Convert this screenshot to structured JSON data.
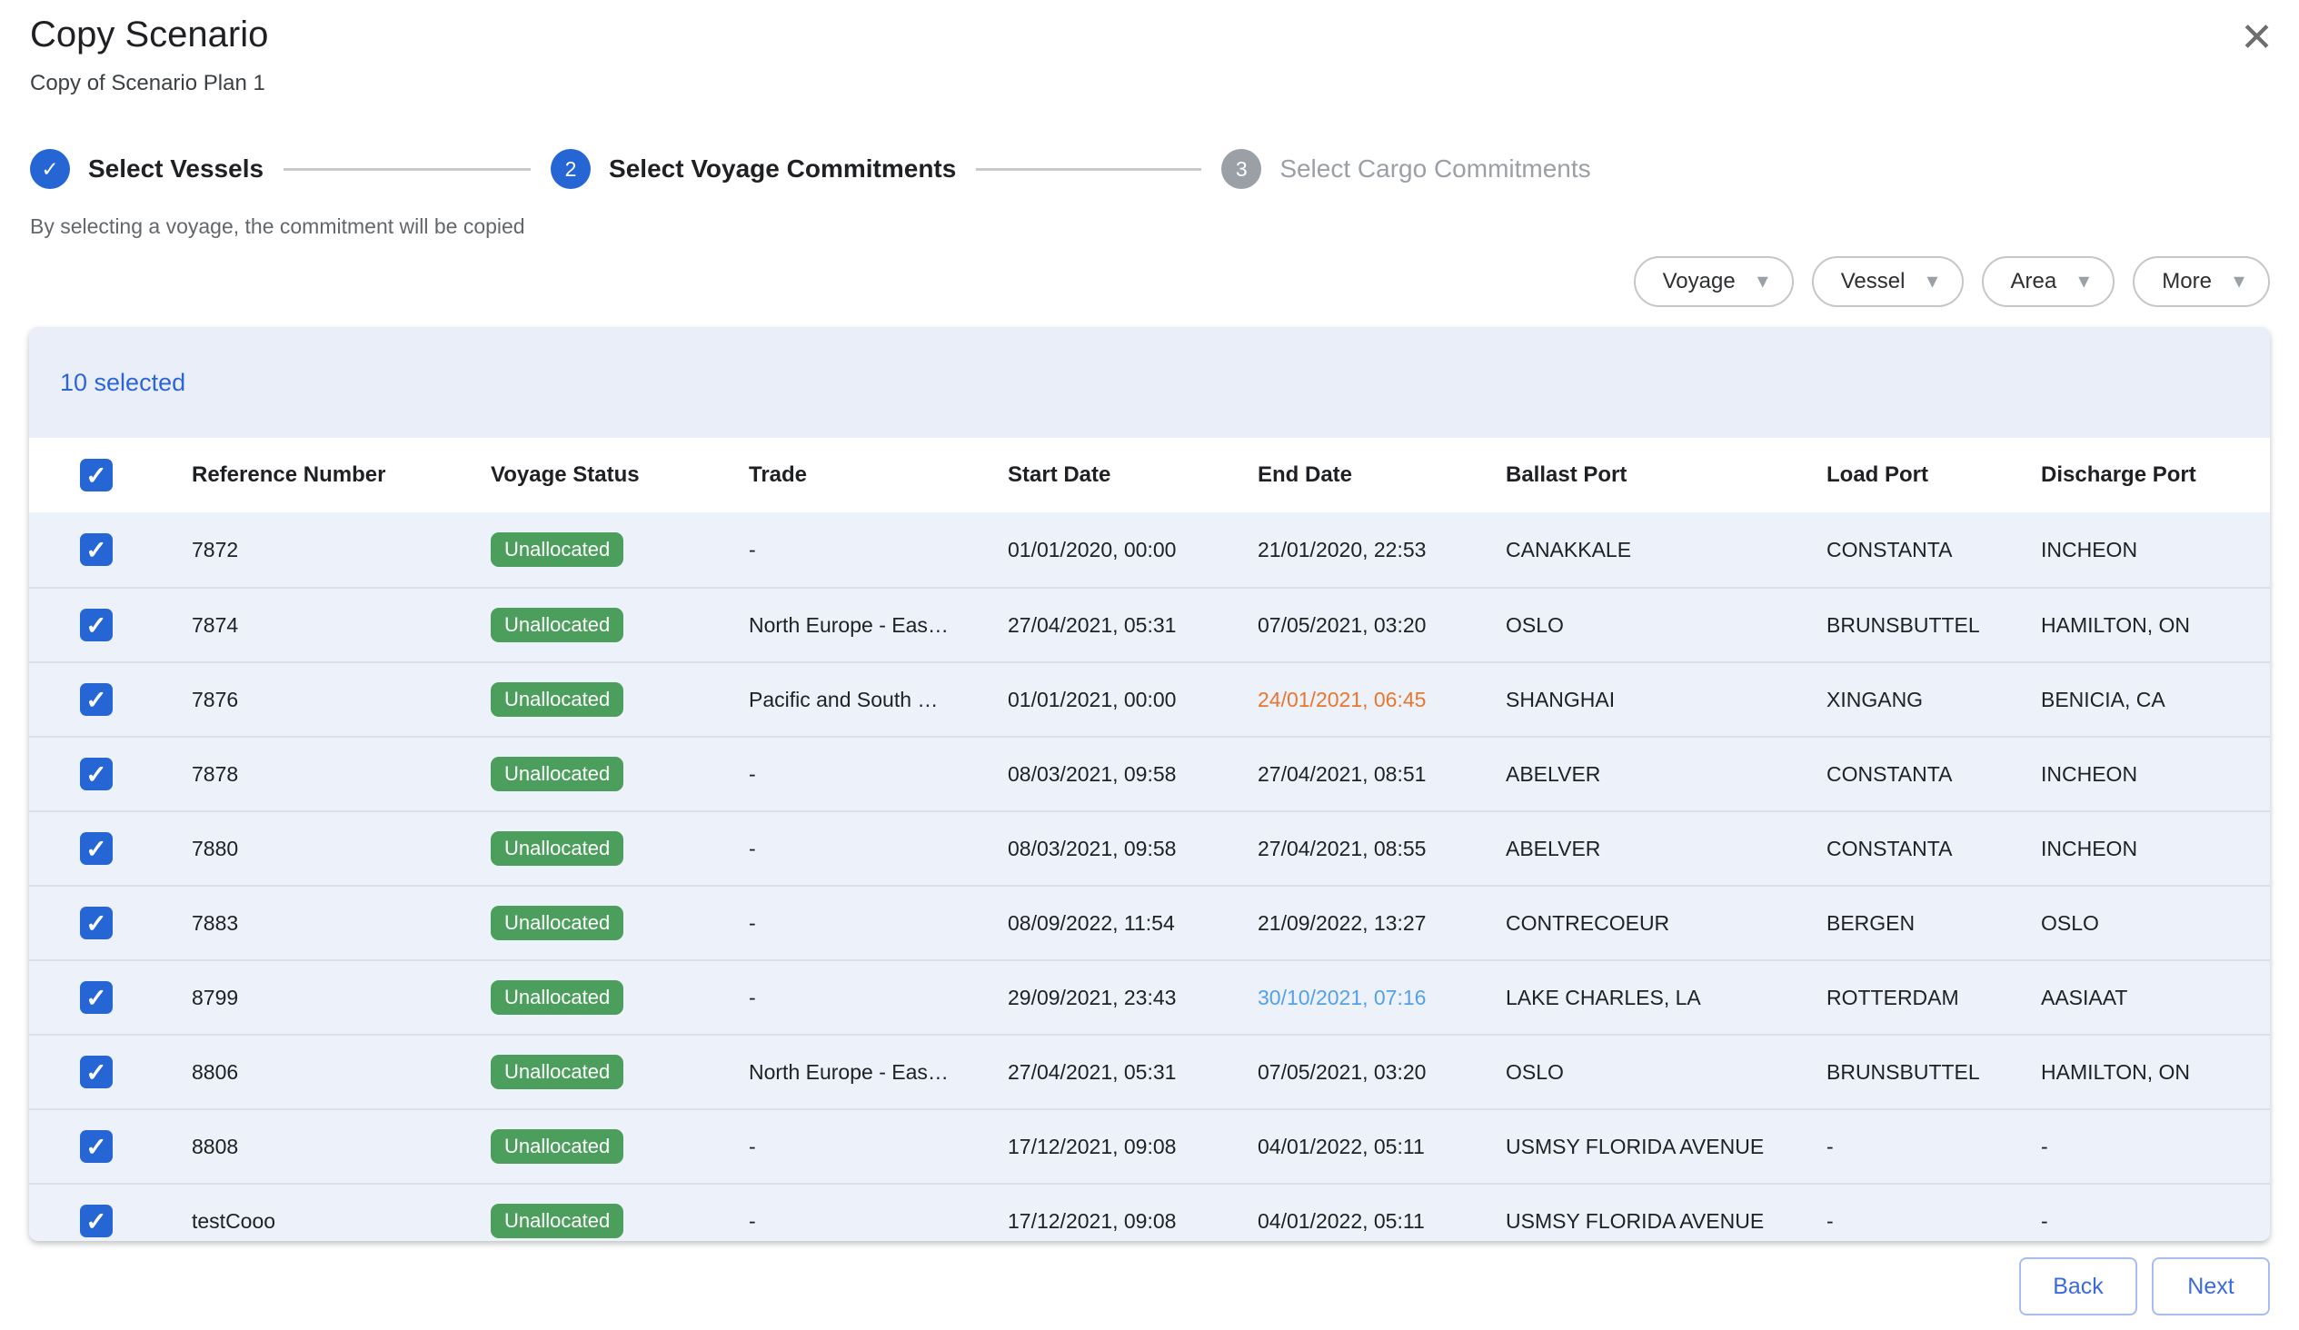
{
  "colors": {
    "accent": "#2565D4",
    "badge_green": "#4C9E5C",
    "date_warning_orange": "#E8772E",
    "date_info_blue": "#54A1E8"
  },
  "icons": {
    "close": "✕",
    "check": "✓",
    "caret_down": "▾"
  },
  "dialog": {
    "title": "Copy Scenario",
    "subtitle": "Copy of Scenario Plan 1"
  },
  "stepper": {
    "helper_text": "By selecting a voyage, the commitment will be copied",
    "steps": [
      {
        "label": "Select Vessels",
        "indicator": "✓",
        "state": "complete"
      },
      {
        "label": "Select Voyage Commitments",
        "indicator": "2",
        "state": "active"
      },
      {
        "label": "Select Cargo Commitments",
        "indicator": "3",
        "state": "upcoming"
      }
    ]
  },
  "filters": {
    "items": [
      {
        "label": "Voyage"
      },
      {
        "label": "Vessel"
      },
      {
        "label": "Area"
      },
      {
        "label": "More"
      }
    ]
  },
  "table": {
    "selection_summary": "10 selected",
    "columns": [
      "Reference Number",
      "Voyage Status",
      "Trade",
      "Start Date",
      "End Date",
      "Ballast Port",
      "Load Port",
      "Discharge Port"
    ],
    "rows": [
      {
        "checked": true,
        "reference": "7872",
        "status": "Unallocated",
        "trade": "-",
        "start": "01/01/2020, 00:00",
        "end": "21/01/2020, 22:53",
        "end_highlight": "",
        "ballast": "CANAKKALE",
        "load": "CONSTANTA",
        "discharge": "INCHEON"
      },
      {
        "checked": true,
        "reference": "7874",
        "status": "Unallocated",
        "trade": "North Europe - Eas…",
        "start": "27/04/2021, 05:31",
        "end": "07/05/2021, 03:20",
        "end_highlight": "",
        "ballast": "OSLO",
        "load": "BRUNSBUTTEL",
        "discharge": "HAMILTON, ON"
      },
      {
        "checked": true,
        "reference": "7876",
        "status": "Unallocated",
        "trade": "Pacific and South …",
        "start": "01/01/2021, 00:00",
        "end": "24/01/2021, 06:45",
        "end_highlight": "warning",
        "ballast": "SHANGHAI",
        "load": "XINGANG",
        "discharge": "BENICIA, CA"
      },
      {
        "checked": true,
        "reference": "7878",
        "status": "Unallocated",
        "trade": "-",
        "start": "08/03/2021, 09:58",
        "end": "27/04/2021, 08:51",
        "end_highlight": "",
        "ballast": "ABELVER",
        "load": "CONSTANTA",
        "discharge": "INCHEON"
      },
      {
        "checked": true,
        "reference": "7880",
        "status": "Unallocated",
        "trade": "-",
        "start": "08/03/2021, 09:58",
        "end": "27/04/2021, 08:55",
        "end_highlight": "",
        "ballast": "ABELVER",
        "load": "CONSTANTA",
        "discharge": "INCHEON"
      },
      {
        "checked": true,
        "reference": "7883",
        "status": "Unallocated",
        "trade": "-",
        "start": "08/09/2022, 11:54",
        "end": "21/09/2022, 13:27",
        "end_highlight": "",
        "ballast": "CONTRECOEUR",
        "load": "BERGEN",
        "discharge": "OSLO"
      },
      {
        "checked": true,
        "reference": "8799",
        "status": "Unallocated",
        "trade": "-",
        "start": "29/09/2021, 23:43",
        "end": "30/10/2021, 07:16",
        "end_highlight": "info",
        "ballast": "LAKE CHARLES, LA",
        "load": "ROTTERDAM",
        "discharge": "AASIAAT"
      },
      {
        "checked": true,
        "reference": "8806",
        "status": "Unallocated",
        "trade": "North Europe - Eas…",
        "start": "27/04/2021, 05:31",
        "end": "07/05/2021, 03:20",
        "end_highlight": "",
        "ballast": "OSLO",
        "load": "BRUNSBUTTEL",
        "discharge": "HAMILTON, ON"
      },
      {
        "checked": true,
        "reference": "8808",
        "status": "Unallocated",
        "trade": "-",
        "start": "17/12/2021, 09:08",
        "end": "04/01/2022, 05:11",
        "end_highlight": "",
        "ballast": "USMSY FLORIDA AVENUE",
        "load": "-",
        "discharge": "-"
      },
      {
        "checked": true,
        "reference": "testCooo",
        "status": "Unallocated",
        "trade": "-",
        "start": "17/12/2021, 09:08",
        "end": "04/01/2022, 05:11",
        "end_highlight": "",
        "ballast": "USMSY FLORIDA AVENUE",
        "load": "-",
        "discharge": "-"
      }
    ]
  },
  "footer": {
    "back": "Back",
    "next": "Next"
  }
}
